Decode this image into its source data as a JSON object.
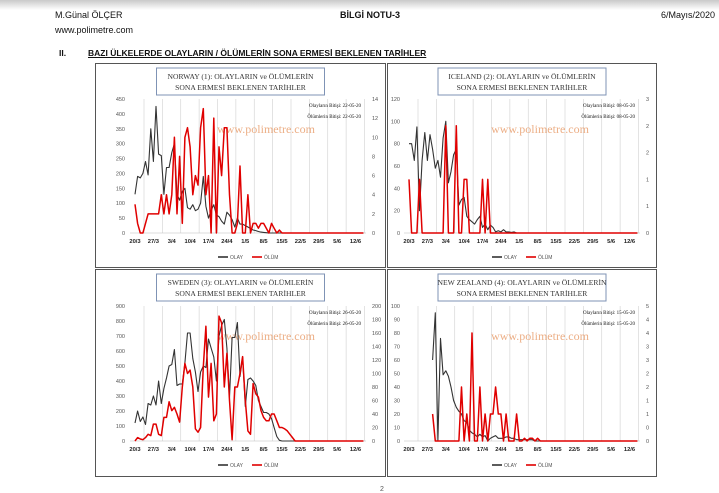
{
  "header": {
    "author": "M.Günal ÖLÇER",
    "website": "www.polimetre.com",
    "doc_title": "BİLGİ NOTU-3",
    "date": "6/Mayıs/2020"
  },
  "section": {
    "number": "II.",
    "title": "BAZI ÜLKELERDE OLAYLARIN / ÖLÜMLERİN SONA ERMESİ BEKLENEN TARİHLER"
  },
  "page_number": "2",
  "chart_data": [
    {
      "type": "line",
      "title_line1": "NORWAY (1): OLAYLARIN  ve ÖLÜMLERİN",
      "title_line2": "SONA ERMESİ BEKLENEN TARİHLER",
      "annotation1": "Olayların Bitişi: 22-05-20",
      "annotation2": "Ölümlerin Bitişi: 22-05-20",
      "watermark": "www.polimetre.com",
      "x_ticks": [
        "20/3",
        "27/3",
        "3/4",
        "10/4",
        "17/4",
        "24/4",
        "1/5",
        "8/5",
        "15/5",
        "22/5",
        "29/5",
        "5/6",
        "12/6"
      ],
      "ylim_left": [
        0,
        450
      ],
      "y_left_ticks": [
        "0",
        "50",
        "100",
        "150",
        "200",
        "250",
        "300",
        "350",
        "400",
        "450"
      ],
      "ylim_right": [
        0,
        14
      ],
      "y_right_ticks": [
        "0",
        "2",
        "4",
        "6",
        "8",
        "10",
        "12",
        "14"
      ],
      "series": [
        {
          "name": "OLAY",
          "axis": "left",
          "color": "#333333",
          "values": [
            130,
            190,
            185,
            200,
            240,
            195,
            350,
            240,
            425,
            265,
            260,
            130,
            220,
            220,
            270,
            300,
            130,
            110,
            140,
            150,
            85,
            80,
            95,
            75,
            80,
            100,
            190,
            90,
            50,
            75,
            95,
            60,
            55,
            40,
            30,
            70,
            60,
            45,
            20,
            50,
            30,
            30,
            25,
            20,
            15,
            10,
            8,
            5,
            3,
            2,
            1,
            0,
            0,
            0,
            0,
            0,
            0,
            0,
            0,
            0,
            0,
            0,
            0,
            0,
            0,
            0,
            0,
            0,
            0,
            0,
            0,
            0,
            0,
            0,
            0,
            0,
            0,
            0,
            0,
            0,
            0,
            0,
            0,
            0,
            0,
            0,
            0,
            0
          ]
        },
        {
          "name": "ÖLÜM",
          "axis": "right",
          "color": "#e00000",
          "values": [
            3,
            1,
            0,
            0,
            1,
            2,
            2,
            2,
            2,
            2,
            4,
            2,
            4,
            2,
            4,
            10,
            2,
            8,
            1,
            10,
            11,
            9,
            4,
            6,
            5,
            11,
            13,
            4,
            6,
            0,
            12,
            0,
            9,
            6,
            11,
            11,
            4,
            0,
            0,
            1,
            7,
            0,
            0,
            4,
            0,
            1,
            1,
            0.5,
            1,
            1,
            0.5,
            0,
            1,
            0.5,
            0,
            0.3,
            0,
            0,
            0,
            0,
            0,
            0,
            0,
            0,
            0,
            0,
            0,
            0,
            0,
            0,
            0,
            0,
            0,
            0,
            0,
            0,
            0,
            0,
            0,
            0,
            0,
            0,
            0,
            0,
            0,
            0,
            0,
            0
          ]
        }
      ],
      "legend": [
        "OLAY",
        "ÖLÜM"
      ]
    },
    {
      "type": "line",
      "title_line1": "ICELAND (2): OLAYLARIN  ve ÖLÜMLERİN",
      "title_line2": "SONA ERMESİ BEKLENEN TARİHLER",
      "annotation1": "Olayların Bitişi: 08-05-20",
      "annotation2": "Ölümlerin Bitişi: 08-05-20",
      "watermark": "www.polimetre.com",
      "x_ticks": [
        "20/3",
        "27/3",
        "3/4",
        "10/4",
        "17/4",
        "24/4",
        "1/5",
        "8/5",
        "15/5",
        "22/5",
        "29/5",
        "5/6",
        "12/6"
      ],
      "ylim_left": [
        0,
        120
      ],
      "y_left_ticks": [
        "0",
        "20",
        "40",
        "60",
        "80",
        "100",
        "120"
      ],
      "ylim_right": [
        0,
        2.5
      ],
      "y_right_ticks": [
        "0",
        "1",
        "1",
        "2",
        "2",
        "3"
      ],
      "series": [
        {
          "name": "OLAY",
          "axis": "left",
          "color": "#333333",
          "values": [
            80,
            80,
            65,
            95,
            20,
            65,
            90,
            65,
            88,
            75,
            58,
            65,
            50,
            85,
            100,
            45,
            55,
            70,
            75,
            25,
            30,
            32,
            15,
            12,
            10,
            8,
            12,
            15,
            5,
            8,
            3,
            7,
            5,
            1,
            2,
            1,
            3,
            1,
            1,
            0.5,
            1,
            0,
            0,
            0,
            0,
            0,
            0,
            0,
            0,
            0,
            0,
            0,
            0,
            0,
            0,
            0,
            0,
            0,
            0,
            0,
            0,
            0,
            0,
            0,
            0,
            0,
            0,
            0,
            0,
            0,
            0,
            0,
            0,
            0,
            0,
            0,
            0,
            0,
            0,
            0,
            0,
            0,
            0,
            0,
            0,
            0,
            0,
            0
          ]
        },
        {
          "name": "ÖLÜM",
          "axis": "right",
          "color": "#e00000",
          "values": [
            1,
            0,
            0,
            0,
            1,
            0,
            0,
            0,
            0,
            0,
            0,
            0,
            0,
            0,
            2,
            0,
            0,
            0,
            2,
            0,
            0,
            1,
            1,
            0,
            0,
            0,
            0,
            0,
            1,
            0,
            1,
            0,
            0,
            0,
            0,
            0,
            0,
            0,
            0,
            0,
            0,
            0,
            0,
            0,
            0,
            0,
            0,
            0,
            0,
            0,
            0,
            0,
            0,
            0,
            0,
            0,
            0,
            0,
            0,
            0,
            0,
            0,
            0,
            0,
            0,
            0,
            0,
            0,
            0,
            0,
            0,
            0,
            0,
            0,
            0,
            0,
            0,
            0,
            0,
            0,
            0,
            0,
            0,
            0,
            0,
            0,
            0,
            0
          ]
        }
      ],
      "legend": [
        "OLAY",
        "ÖLÜM"
      ]
    },
    {
      "type": "line",
      "title_line1": "SWEDEN (3): OLAYLARIN  ve ÖLÜMLERİN",
      "title_line2": "SONA ERMESİ BEKLENEN TARİHLER",
      "annotation1": "Olayların Bitişi: 26-05-20",
      "annotation2": "Ölümlerin Bitişi: 26-05-20",
      "watermark": "www.polimetre.com",
      "x_ticks": [
        "20/3",
        "27/3",
        "3/4",
        "10/4",
        "17/4",
        "24/4",
        "1/5",
        "8/5",
        "15/5",
        "22/5",
        "29/5",
        "5/6",
        "12/6"
      ],
      "ylim_left": [
        0,
        900
      ],
      "y_left_ticks": [
        "0",
        "100",
        "200",
        "300",
        "400",
        "500",
        "600",
        "700",
        "800",
        "900"
      ],
      "ylim_right": [
        0,
        200
      ],
      "y_right_ticks": [
        "0",
        "20",
        "40",
        "60",
        "80",
        "100",
        "120",
        "140",
        "160",
        "180",
        "200"
      ],
      "series": [
        {
          "name": "OLAY",
          "axis": "left",
          "color": "#333333",
          "values": [
            120,
            200,
            130,
            160,
            110,
            250,
            240,
            300,
            240,
            400,
            250,
            350,
            420,
            500,
            510,
            610,
            370,
            380,
            380,
            520,
            720,
            720,
            550,
            460,
            330,
            460,
            500,
            490,
            680,
            620,
            560,
            400,
            700,
            770,
            810,
            620,
            290,
            690,
            690,
            790,
            430,
            560,
            230,
            410,
            420,
            400,
            370,
            270,
            230,
            190,
            190,
            180,
            150,
            90,
            30,
            5,
            0,
            0,
            0,
            0,
            0,
            0,
            0,
            0,
            0,
            0,
            0,
            0,
            0,
            0,
            0,
            0,
            0,
            0,
            0,
            0,
            0,
            0,
            0,
            0,
            0,
            0,
            0,
            0,
            0,
            0,
            0,
            0
          ]
        },
        {
          "name": "ÖLÜM",
          "axis": "right",
          "color": "#e00000",
          "values": [
            0,
            5,
            3,
            2,
            5,
            10,
            8,
            25,
            25,
            10,
            8,
            35,
            35,
            58,
            45,
            50,
            40,
            28,
            80,
            115,
            100,
            105,
            80,
            18,
            13,
            20,
            110,
            170,
            65,
            115,
            30,
            40,
            185,
            175,
            80,
            130,
            60,
            2,
            80,
            80,
            100,
            125,
            60,
            15,
            10,
            85,
            70,
            65,
            45,
            35,
            30,
            30,
            40,
            40,
            30,
            20,
            20,
            18,
            15,
            10,
            5,
            0,
            0,
            0,
            0,
            0,
            0,
            0,
            0,
            0,
            0,
            0,
            0,
            0,
            0,
            0,
            0,
            0,
            0,
            0,
            0,
            0,
            0,
            0,
            0,
            0,
            0,
            0
          ]
        }
      ],
      "legend": [
        "OLAY",
        "ÖLÜM"
      ]
    },
    {
      "type": "line",
      "title_line1": "NEW ZEALAND  (4): OLAYLARIN  ve ÖLÜMLERİN",
      "title_line2": "SONA ERMESİ BEKLENEN TARİHLER",
      "annotation1": "Olayların Bitişi: 15-05-20",
      "annotation2": "Ölümlerin Bitişi: 15-05-20",
      "watermark": "www.polimetre.com",
      "x_ticks": [
        "20/3",
        "27/3",
        "3/4",
        "10/4",
        "17/4",
        "24/4",
        "1/5",
        "8/5",
        "15/5",
        "22/5",
        "29/5",
        "5/6",
        "12/6"
      ],
      "ylim_left": [
        0,
        100
      ],
      "y_left_ticks": [
        "0",
        "10",
        "20",
        "30",
        "40",
        "50",
        "60",
        "70",
        "80",
        "90",
        "100"
      ],
      "ylim_right": [
        0,
        5
      ],
      "y_right_ticks": [
        "0",
        "0",
        "1",
        "1",
        "2",
        "2",
        "3",
        "3",
        "4",
        "4",
        "5"
      ],
      "series": [
        {
          "name": "OLAY",
          "axis": "left",
          "color": "#333333",
          "values": [
            null,
            null,
            null,
            null,
            null,
            null,
            null,
            null,
            null,
            60,
            95,
            0,
            76,
            49,
            52,
            48,
            40,
            30,
            25,
            22,
            20,
            15,
            14,
            8,
            6,
            5,
            3,
            5,
            3,
            4,
            0,
            2,
            3,
            4,
            2,
            2,
            2,
            3,
            3,
            2,
            2,
            1,
            1,
            1,
            1,
            1,
            1,
            1,
            0,
            0,
            0,
            0,
            0,
            0,
            0,
            0,
            0,
            0,
            0,
            0,
            0,
            0,
            0,
            0,
            0,
            0,
            0,
            0,
            0,
            0,
            0,
            0,
            0,
            0,
            0,
            0,
            0,
            0,
            0,
            0,
            0,
            0,
            0,
            0,
            0,
            0,
            0,
            0
          ]
        },
        {
          "name": "ÖLÜM",
          "axis": "right",
          "color": "#e00000",
          "values": [
            null,
            null,
            null,
            null,
            null,
            null,
            null,
            null,
            null,
            1,
            0,
            0,
            0,
            0,
            0,
            0,
            0,
            0,
            0,
            0,
            2,
            0,
            1,
            0,
            4,
            0,
            0,
            2,
            0,
            1,
            0,
            1,
            1,
            2,
            1,
            1,
            0,
            1,
            0,
            0,
            0,
            1,
            0,
            0,
            0.1,
            0,
            0.1,
            0.1,
            0,
            0.1,
            0,
            0,
            0,
            0,
            0,
            0,
            0,
            0,
            0,
            0,
            0,
            0,
            0,
            0,
            0,
            0,
            0,
            0,
            0,
            0,
            0,
            0,
            0,
            0,
            0,
            0,
            0,
            0,
            0,
            0,
            0,
            0,
            0,
            0,
            0,
            0,
            0,
            0
          ]
        }
      ],
      "legend": [
        "OLAY",
        "ÖLÜM"
      ]
    }
  ]
}
